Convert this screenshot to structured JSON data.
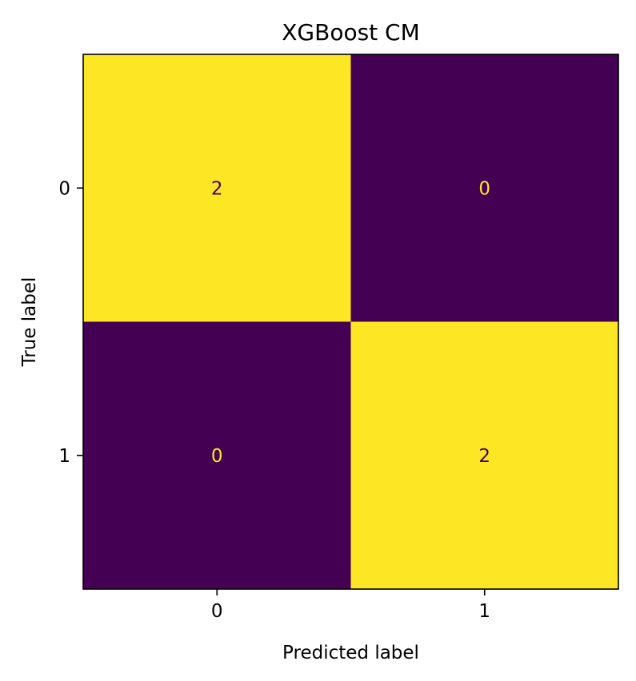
{
  "chart_data": {
    "type": "heatmap",
    "title": "XGBoost CM",
    "xlabel": "Predicted label",
    "ylabel": "True label",
    "x_categories": [
      "0",
      "1"
    ],
    "y_categories": [
      "0",
      "1"
    ],
    "matrix": [
      [
        2,
        0
      ],
      [
        0,
        2
      ]
    ],
    "value_range": [
      0,
      2
    ],
    "colorbar": false,
    "grid": false,
    "colors": {
      "low": "#440154",
      "high": "#fde725",
      "text_on_low": "#fde725",
      "text_on_high": "#440154"
    }
  }
}
